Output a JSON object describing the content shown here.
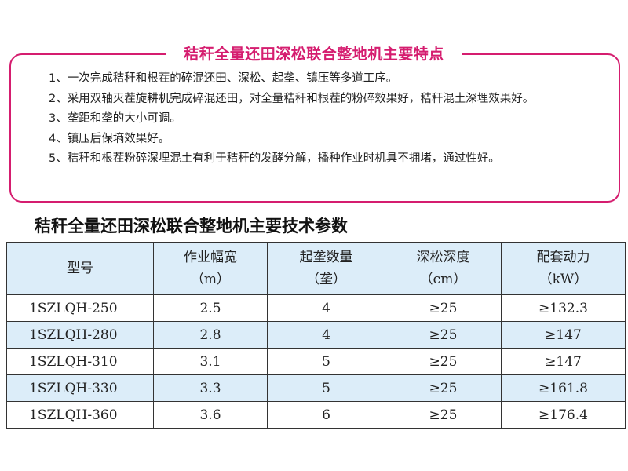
{
  "features": {
    "title": "秸秆全量还田深松联合整地机主要特点",
    "items": [
      "1、一次完成秸秆和根茬的碎混还田、深松、起垄、镇压等多道工序。",
      "2、采用双轴灭茬旋耕机完成碎混还田，对全量秸秆和根茬的粉碎效果好，秸秆混土深埋效果好。",
      "3、垄距和垄的大小可调。",
      "4、镇压后保墒效果好。",
      "5、秸秆和根茬粉碎深埋混土有利于秸秆的发酵分解，播种作业时机具不拥堵，通过性好。"
    ],
    "accent_color": "#d51d6f"
  },
  "specs": {
    "title": "秸秆全量还田深松联合整地机主要技术参数",
    "headers": [
      {
        "label": "型号",
        "unit": ""
      },
      {
        "label": "作业幅宽",
        "unit": "（m）"
      },
      {
        "label": "起垄数量",
        "unit": "（垄）"
      },
      {
        "label": "深松深度",
        "unit": "（cm）"
      },
      {
        "label": "配套动力",
        "unit": "（kW）"
      }
    ],
    "rows": [
      [
        "1SZLQH-250",
        "2.5",
        "4",
        "≥25",
        "≥132.3"
      ],
      [
        "1SZLQH-280",
        "2.8",
        "4",
        "≥25",
        "≥147"
      ],
      [
        "1SZLQH-310",
        "3.1",
        "5",
        "≥25",
        "≥147"
      ],
      [
        "1SZLQH-330",
        "3.3",
        "5",
        "≥25",
        "≥161.8"
      ],
      [
        "1SZLQH-360",
        "3.6",
        "6",
        "≥25",
        "≥176.4"
      ]
    ],
    "header_bg": "#dcedf9"
  }
}
